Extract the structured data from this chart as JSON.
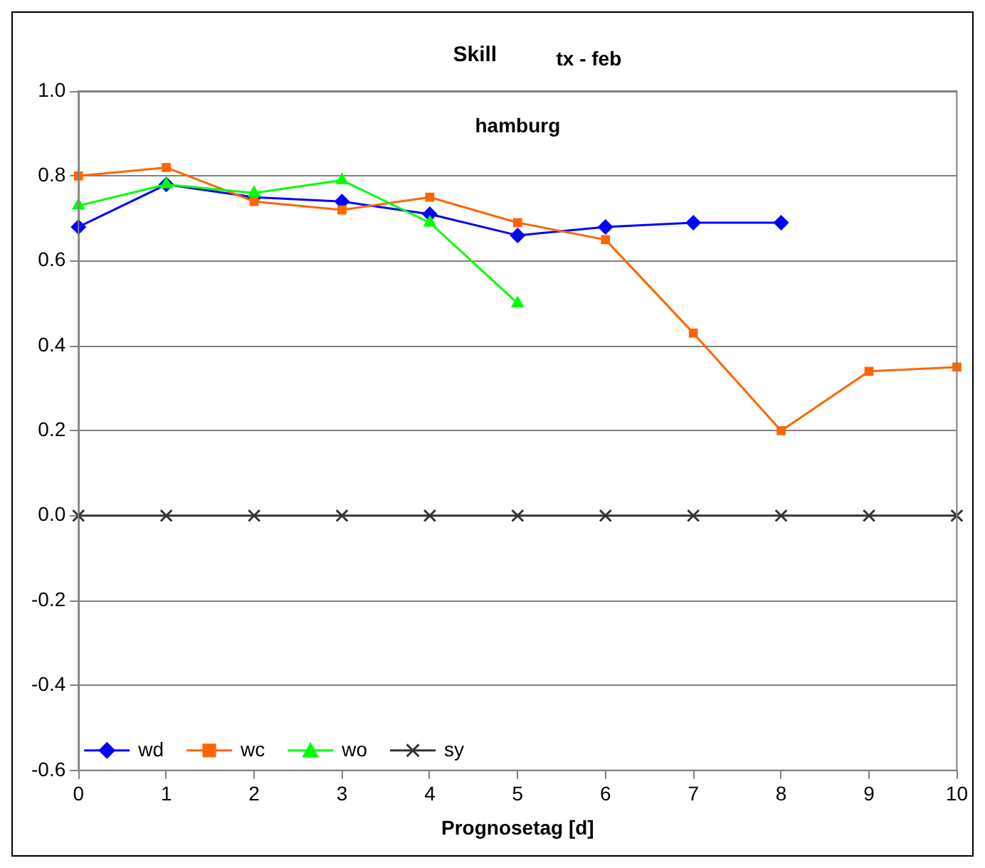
{
  "chart_data": {
    "type": "line",
    "title": "Skill",
    "subtitle": "tx - feb",
    "annotations": [
      "hamburg"
    ],
    "xlabel": "Prognosetag [d]",
    "x": [
      0,
      1,
      2,
      3,
      4,
      5,
      6,
      7,
      8,
      9,
      10
    ],
    "xlim": [
      0,
      10
    ],
    "xticks": [
      0,
      1,
      2,
      3,
      4,
      5,
      6,
      7,
      8,
      9,
      10
    ],
    "ylim": [
      -0.6,
      1
    ],
    "yticks": [
      {
        "value": -0.6,
        "label": "-0.6"
      },
      {
        "value": -0.4,
        "label": "-0.4"
      },
      {
        "value": -0.2,
        "label": "-0.2"
      },
      {
        "value": 0,
        "label": "0.0"
      },
      0.2,
      0.4,
      0.6,
      0.8,
      {
        "value": 1,
        "label": "1.0"
      }
    ],
    "grid": "y",
    "legend": "bottom left",
    "series": [
      {
        "name": "wd",
        "color": "#0000ff",
        "marker": "diamond",
        "values": [
          0.68,
          0.78,
          0.75,
          0.74,
          0.71,
          0.66,
          0.68,
          0.69,
          0.69,
          null,
          null
        ]
      },
      {
        "name": "wc",
        "color": "#ff6600",
        "marker": "square",
        "values": [
          0.8,
          0.82,
          0.74,
          0.72,
          0.75,
          0.69,
          0.65,
          0.43,
          0.2,
          0.34,
          0.35
        ]
      },
      {
        "name": "wo",
        "color": "#00ff00",
        "marker": "triangle",
        "values": [
          0.73,
          0.78,
          0.76,
          0.79,
          0.69,
          0.5,
          null,
          null,
          null,
          null,
          null
        ]
      },
      {
        "name": "sy",
        "color": "#333333",
        "marker": "cross",
        "values": [
          0,
          0,
          0,
          0,
          0,
          0,
          0,
          0,
          0,
          0,
          0
        ]
      }
    ]
  }
}
